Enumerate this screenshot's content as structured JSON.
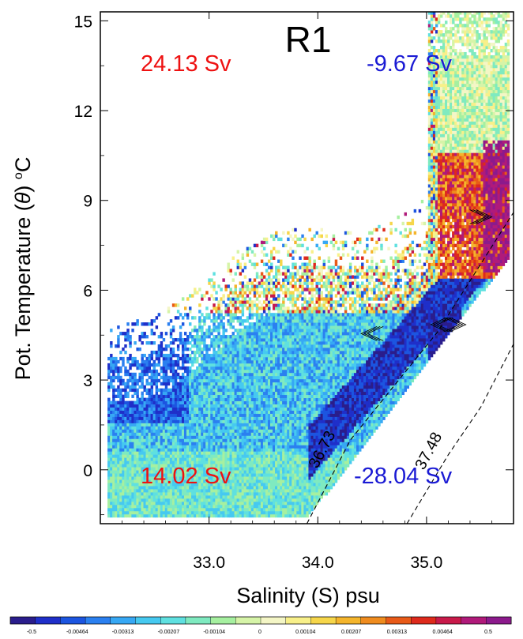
{
  "chart_data": {
    "type": "heatmap",
    "title": "R1",
    "xlabel": "Salinity (S) psu",
    "ylabel_parts": [
      "Pot. Temperature (",
      "θ",
      ") ",
      "o",
      "C"
    ],
    "xlim": [
      32.0,
      35.8
    ],
    "ylim": [
      -1.8,
      15.3
    ],
    "x_ticks": [
      {
        "value": 33.0,
        "label": "33.0"
      },
      {
        "value": 34.0,
        "label": "34.0"
      },
      {
        "value": 35.0,
        "label": "35.0"
      }
    ],
    "y_ticks": [
      {
        "value": 15,
        "label": "15"
      },
      {
        "value": 12,
        "label": "12"
      },
      {
        "value": 9,
        "label": "9"
      },
      {
        "value": 6,
        "label": "6"
      },
      {
        "value": 3,
        "label": "3"
      },
      {
        "value": 0,
        "label": "0"
      }
    ],
    "annotations": [
      {
        "name": "top-left-transport",
        "text": "24.13 Sv",
        "color": "#ee1111",
        "corner": "top-left"
      },
      {
        "name": "top-right-transport",
        "text": "-9.67 Sv",
        "color": "#1a1ad4",
        "corner": "top-right"
      },
      {
        "name": "bottom-left-transport",
        "text": "14.02 Sv",
        "color": "#ee1111",
        "corner": "bottom-left"
      },
      {
        "name": "bottom-right-transport",
        "text": "-28.04 Sv",
        "color": "#1a1ad4",
        "corner": "bottom-right"
      }
    ],
    "density_contours": [
      {
        "label": "36.73",
        "points": [
          [
            33.9,
            -1.8
          ],
          [
            34.3,
            1.0
          ],
          [
            34.7,
            2.8
          ],
          [
            35.1,
            4.6
          ],
          [
            35.8,
            8.6
          ]
        ]
      },
      {
        "label": "37.48",
        "points": [
          [
            34.82,
            -1.8
          ],
          [
            35.2,
            0.5
          ],
          [
            35.5,
            2.1
          ],
          [
            35.8,
            4.2
          ]
        ]
      }
    ],
    "colorbar": {
      "labels": [
        "-0.5",
        "-0.00464",
        "-0.00313",
        "-0.00207",
        "-0.00104",
        "0",
        "0.00104",
        "0.00207",
        "0.00313",
        "0.00464",
        "0.5"
      ],
      "colors": [
        "#2a1d8c",
        "#1f2fc9",
        "#1c55e0",
        "#2b80f0",
        "#37a8f4",
        "#46c9f0",
        "#5fe0e0",
        "#7feac0",
        "#a6f0a0",
        "#d6f4a8",
        "#f4f6c6",
        "#f8f08a",
        "#f6d64a",
        "#f4b52c",
        "#ef8c1f",
        "#e85a18",
        "#de2a1c",
        "#c81a4a",
        "#b01a7a",
        "#8c1a8c"
      ]
    }
  }
}
